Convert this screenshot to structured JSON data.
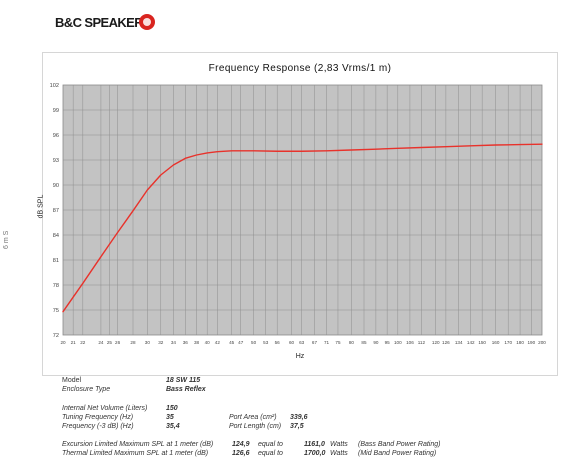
{
  "logo": {
    "text": "B&C SPEAKERS"
  },
  "side_mark": "6 m S",
  "chart_data": {
    "type": "line",
    "title": "Frequency Response (2,83 Vrms/1 m)",
    "xlabel": "Hz",
    "ylabel": "dB SPL",
    "x_scale": "log",
    "xlim": [
      20,
      200
    ],
    "ylim": [
      72,
      102
    ],
    "yticks": [
      "72",
      "75",
      "78",
      "81",
      "84",
      "87",
      "90",
      "93",
      "96",
      "99",
      "102"
    ],
    "xticks": [
      "20",
      "21",
      "22",
      "24",
      "25",
      "26",
      "28",
      "30",
      "32",
      "34",
      "36",
      "38",
      "40",
      "42",
      "45",
      "47",
      "50",
      "53",
      "56",
      "60",
      "63",
      "67",
      "71",
      "75",
      "80",
      "85",
      "90",
      "95",
      "100",
      "106",
      "112",
      "120",
      "126",
      "134",
      "142",
      "150",
      "160",
      "170",
      "180",
      "190",
      "200"
    ],
    "grid": true,
    "series": [
      {
        "color": "#e8322b",
        "x": [
          20,
          22,
          24,
          26,
          28,
          30,
          32,
          34,
          36,
          38,
          40,
          42,
          45,
          50,
          56,
          63,
          71,
          80,
          90,
          100,
          112,
          126,
          142,
          160,
          180,
          200
        ],
        "y": [
          74.8,
          78.2,
          81.4,
          84.3,
          86.9,
          89.4,
          91.2,
          92.4,
          93.2,
          93.6,
          93.85,
          94.0,
          94.1,
          94.1,
          94.05,
          94.05,
          94.1,
          94.2,
          94.3,
          94.4,
          94.5,
          94.6,
          94.7,
          94.8,
          94.85,
          94.9
        ]
      }
    ]
  },
  "specs": {
    "model_label": "Model",
    "model_value": "18 SW 115",
    "enclosure_label": "Enclosure Type",
    "enclosure_value": "Bass Reflex",
    "volume_label": "Internal Net Volume (Liters)",
    "volume_value": "150",
    "tuning_label": "Tuning Frequency (Hz)",
    "tuning_value": "35",
    "f3_label": "Frequency (-3 dB) (Hz)",
    "f3_value": "35,4",
    "port_area_label": "Port Area (cm²)",
    "port_area_value": "339,6",
    "port_length_label": "Port Length (cm)",
    "port_length_value": "37,5",
    "excursion_label": "Excursion Limited Maximum SPL at 1 meter (dB)",
    "excursion_value": "124,9",
    "excursion_equal": "equal to",
    "excursion_watts": "1161,0",
    "excursion_unit": "Watts",
    "excursion_note": "(Bass Band Power Rating)",
    "thermal_label": "Thermal Limited Maximum SPL at 1 meter (dB)",
    "thermal_value": "126,6",
    "thermal_equal": "equal to",
    "thermal_watts": "1700,0",
    "thermal_unit": "Watts",
    "thermal_note": "(Mid Band Power Rating)"
  }
}
